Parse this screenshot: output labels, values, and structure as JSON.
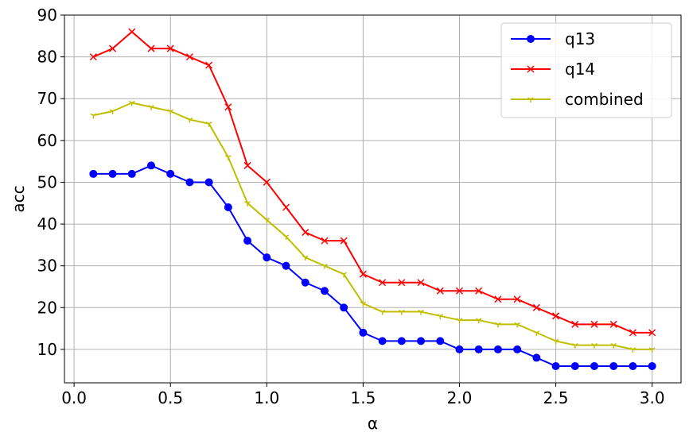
{
  "chart_data": {
    "type": "line",
    "xlabel": "α",
    "ylabel": "acc",
    "xlim": [
      -0.05,
      3.15
    ],
    "ylim": [
      2,
      90
    ],
    "xticks": [
      0.0,
      0.5,
      1.0,
      1.5,
      2.0,
      2.5,
      3.0
    ],
    "xtick_labels": [
      "0.0",
      "0.5",
      "1.0",
      "1.5",
      "2.0",
      "2.5",
      "3.0"
    ],
    "yticks": [
      10,
      20,
      30,
      40,
      50,
      60,
      70,
      80,
      90
    ],
    "ytick_labels": [
      "10",
      "20",
      "30",
      "40",
      "50",
      "60",
      "70",
      "80",
      "90"
    ],
    "grid": true,
    "legend_position": "top-right",
    "x": [
      0.1,
      0.2,
      0.3,
      0.4,
      0.5,
      0.6,
      0.7,
      0.8,
      0.9,
      1.0,
      1.1,
      1.2,
      1.3,
      1.4,
      1.5,
      1.6,
      1.7,
      1.8,
      1.9,
      2.0,
      2.1,
      2.2,
      2.3,
      2.4,
      2.5,
      2.6,
      2.7,
      2.8,
      2.9,
      3.0
    ],
    "series": [
      {
        "name": "q13",
        "color": "#0000ff",
        "marker": "circle",
        "values": [
          52,
          52,
          52,
          54,
          52,
          50,
          50,
          44,
          36,
          32,
          30,
          26,
          24,
          20,
          14,
          12,
          12,
          12,
          12,
          10,
          10,
          10,
          10,
          8,
          6,
          6,
          6,
          6,
          6,
          6
        ]
      },
      {
        "name": "q14",
        "color": "#ff0000",
        "marker": "x",
        "values": [
          80,
          82,
          86,
          82,
          82,
          80,
          78,
          68,
          54,
          50,
          44,
          38,
          36,
          36,
          28,
          26,
          26,
          26,
          24,
          24,
          24,
          22,
          22,
          20,
          18,
          16,
          16,
          16,
          14,
          14
        ]
      },
      {
        "name": "combined",
        "color": "#bfbf00",
        "marker": "tri_down",
        "values": [
          66,
          67,
          69,
          68,
          67,
          65,
          64,
          56,
          45,
          41,
          37,
          32,
          30,
          28,
          21,
          19,
          19,
          19,
          18,
          17,
          17,
          16,
          16,
          14,
          12,
          11,
          11,
          11,
          10,
          10
        ]
      }
    ]
  }
}
